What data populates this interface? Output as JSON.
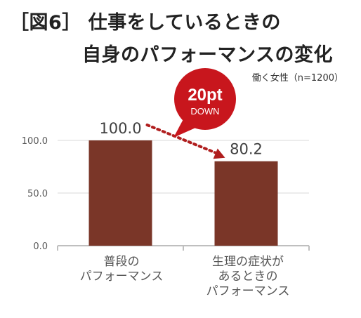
{
  "title": {
    "line1": "［図6］ 仕事をしているときの",
    "line2": "自身のパフォーマンスの変化"
  },
  "sample_note": "働く女性（n=1200）",
  "callout": {
    "value": "20pt",
    "label": "DOWN"
  },
  "colors": {
    "bar": "#7a3628",
    "callout": "#c8161d",
    "arrow": "#b01e1e",
    "grid": "#d9d9d9",
    "axis": "#bfbfbf"
  },
  "chart_data": {
    "type": "bar",
    "categories": [
      "普段の\nパフォーマンス",
      "生理の症状が\nあるときの\nパフォーマンス"
    ],
    "values": [
      100.0,
      80.2
    ],
    "value_labels": [
      "100.0",
      "80.2"
    ],
    "yticks": [
      "0.0",
      "50.0",
      "100.0"
    ],
    "ylim": [
      0,
      130
    ],
    "grid": true
  }
}
